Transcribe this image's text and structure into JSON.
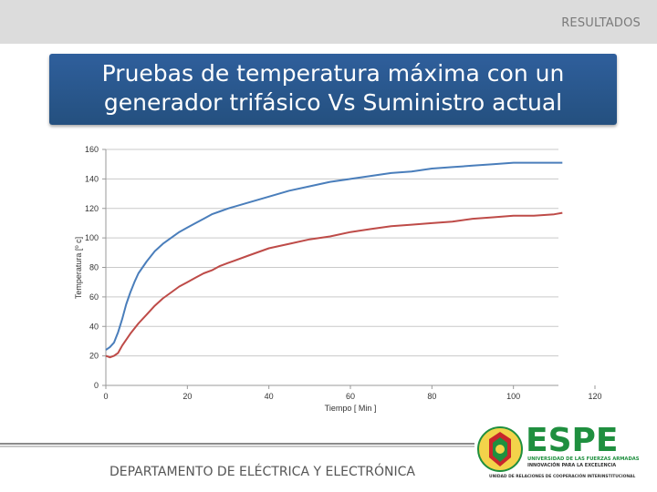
{
  "header": {
    "section": "RESULTADOS"
  },
  "title": {
    "line1": "Pruebas de temperatura máxima con un",
    "line2": "generador trifásico Vs Suministro actual"
  },
  "footer": {
    "department": "DEPARTAMENTO DE ELÉCTRICA Y ELECTRÓNICA"
  },
  "logo": {
    "name": "ESPE",
    "tagline1": "UNIVERSIDAD DE LAS FUERZAS ARMADAS",
    "tagline2": "INNOVACIÓN PARA LA EXCELENCIA",
    "tagline3": "UNIDAD DE RELACIONES DE COOPERACIÓN INTERINSTITUCIONAL"
  },
  "colors": {
    "title_bg": "#2f5f9c",
    "series_blue": "#4a7ebb",
    "series_red": "#be4b48",
    "logo_green": "#1f8f3f"
  },
  "chart_data": {
    "type": "line",
    "xlabel": "Tiempo [ Min ]",
    "ylabel": "Temperatura [º c]",
    "xlim": [
      0,
      120
    ],
    "ylim": [
      0,
      160
    ],
    "xticks": [
      0,
      20,
      40,
      60,
      80,
      100,
      120
    ],
    "yticks": [
      0,
      20,
      40,
      60,
      80,
      100,
      120,
      140,
      160
    ],
    "grid": "horizontal",
    "series": [
      {
        "color": "#4a7ebb",
        "x": [
          0,
          1,
          2,
          3,
          4,
          5,
          6,
          7,
          8,
          10,
          12,
          14,
          16,
          18,
          20,
          22,
          24,
          26,
          28,
          30,
          35,
          40,
          45,
          50,
          55,
          60,
          65,
          70,
          75,
          80,
          85,
          90,
          95,
          100,
          105,
          110,
          112
        ],
        "y": [
          24,
          26,
          29,
          36,
          45,
          55,
          63,
          70,
          76,
          84,
          91,
          96,
          100,
          104,
          107,
          110,
          113,
          116,
          118,
          120,
          124,
          128,
          132,
          135,
          138,
          140,
          142,
          144,
          145,
          147,
          148,
          149,
          150,
          151,
          151,
          151,
          151
        ]
      },
      {
        "color": "#be4b48",
        "x": [
          0,
          1,
          2,
          3,
          4,
          6,
          8,
          10,
          12,
          14,
          16,
          18,
          20,
          22,
          24,
          26,
          28,
          30,
          35,
          40,
          45,
          50,
          55,
          60,
          65,
          70,
          75,
          80,
          85,
          90,
          95,
          100,
          105,
          110,
          112
        ],
        "y": [
          20,
          19,
          20,
          22,
          27,
          35,
          42,
          48,
          54,
          59,
          63,
          67,
          70,
          73,
          76,
          78,
          81,
          83,
          88,
          93,
          96,
          99,
          101,
          104,
          106,
          108,
          109,
          110,
          111,
          113,
          114,
          115,
          115,
          116,
          117
        ]
      }
    ]
  }
}
